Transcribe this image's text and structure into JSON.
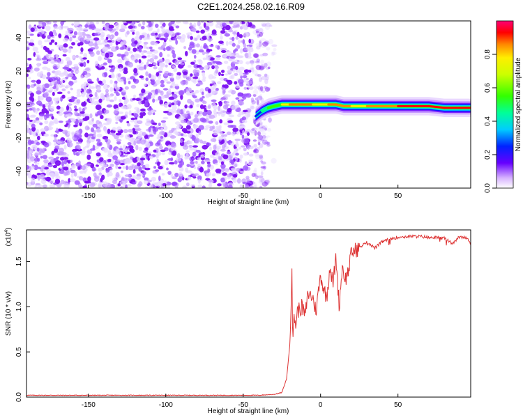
{
  "title": "C2E1.2024.258.02.16.R09",
  "chart_data": [
    {
      "type": "heatmap",
      "title": "C2E1.2024.258.02.16.R09",
      "xlabel": "Height of straight line (km)",
      "ylabel": "Frequency (Hz)",
      "xlim": [
        -190,
        97
      ],
      "ylim": [
        -50,
        50
      ],
      "x_ticks": [
        -150,
        -100,
        -50,
        0,
        50
      ],
      "y_ticks": [
        -40,
        -20,
        0,
        20,
        40
      ],
      "grid": false,
      "noise_region": {
        "x_range": [
          -190,
          -37
        ],
        "y_range": [
          -50,
          50
        ],
        "description_units": "km / Hz"
      },
      "signal_band": {
        "x": [
          -42,
          -38,
          -34,
          -30,
          -25,
          -20,
          -15,
          -10,
          -5,
          0,
          5,
          10,
          15,
          20,
          30,
          40,
          50,
          60,
          70,
          80,
          90,
          97
        ],
        "center_hz": [
          -7,
          -4,
          -2,
          -1,
          0,
          0,
          0,
          0,
          0,
          0,
          0,
          0,
          -1,
          -1,
          -1,
          -1,
          -1,
          -1,
          -1,
          -2,
          -2,
          -2
        ],
        "amplitude": [
          0.2,
          0.4,
          0.55,
          0.6,
          0.75,
          0.9,
          0.95,
          0.85,
          0.95,
          0.7,
          0.95,
          0.9,
          0.9,
          0.85,
          0.85,
          0.9,
          0.95,
          0.95,
          0.95,
          0.95,
          0.95,
          0.95
        ]
      }
    },
    {
      "type": "line",
      "xlabel": "Height of straight line (km)",
      "ylabel": "SNR (10 * v/v)",
      "y_multiplier_label": "(x10",
      "y_multiplier_exp": "4",
      "y_multiplier_close": ")",
      "xlim": [
        -190,
        97
      ],
      "ylim": [
        0,
        1.85
      ],
      "x_ticks": [
        -150,
        -100,
        -50,
        0,
        50
      ],
      "y_ticks": [
        "0.0",
        "0.5",
        "1.0",
        "1.5"
      ],
      "color": "#dd3333",
      "series": [
        {
          "x": [
            -190,
            -150,
            -100,
            -60,
            -40,
            -30,
            -25,
            -22,
            -20,
            -19,
            -18.5,
            -18,
            -17,
            -16,
            -15,
            -12,
            -10,
            -8,
            -5,
            -3,
            0,
            2,
            4,
            6,
            8,
            10,
            12,
            14,
            16,
            18,
            20,
            25,
            30,
            35,
            40,
            45,
            50,
            60,
            70,
            80,
            85,
            90,
            95,
            97
          ],
          "y": [
            0.02,
            0.02,
            0.02,
            0.02,
            0.02,
            0.03,
            0.05,
            0.2,
            0.55,
            1.1,
            1.45,
            0.6,
            0.9,
            0.8,
            0.95,
            1.0,
            0.9,
            1.15,
            1.1,
            0.95,
            1.35,
            1.2,
            1.1,
            1.45,
            1.25,
            1.55,
            1.0,
            1.45,
            1.3,
            1.4,
            1.6,
            1.65,
            1.72,
            1.65,
            1.72,
            1.75,
            1.77,
            1.78,
            1.77,
            1.76,
            1.7,
            1.78,
            1.75,
            1.7
          ]
        }
      ]
    }
  ],
  "colorbar": {
    "label": "Normalized spectral amplitude",
    "ticks": [
      "0.0",
      "0.2",
      "0.4",
      "0.6",
      "0.8"
    ],
    "range": [
      0,
      1
    ]
  }
}
